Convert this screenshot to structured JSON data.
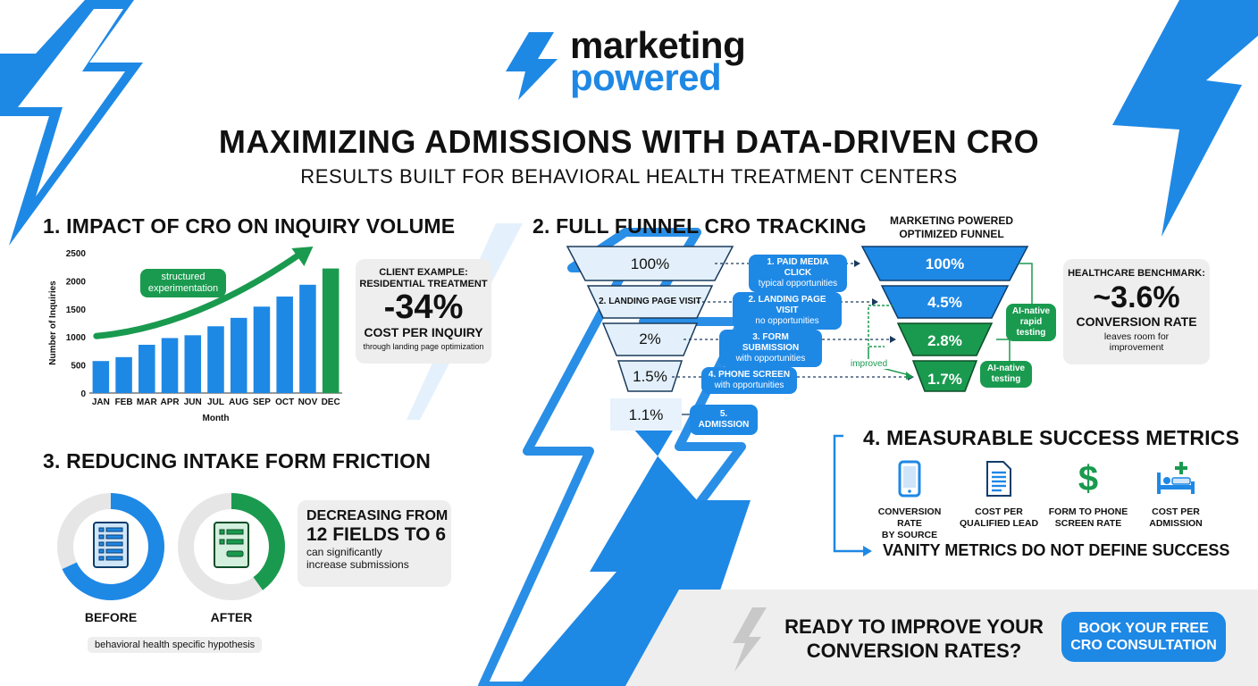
{
  "brand": {
    "line1": "marketing",
    "line2": "powered"
  },
  "title": "MAXIMIZING ADMISSIONS WITH DATA-DRIVEN CRO",
  "subtitle": "RESULTS BUILT FOR BEHAVIORAL HEALTH TREATMENT CENTERS",
  "colors": {
    "blue": "#1e88e5",
    "green": "#1a9a4f",
    "gray": "#eeeeee"
  },
  "section1": {
    "title": "1. IMPACT OF CRO ON INQUIRY VOLUME",
    "annotation": [
      "structured",
      "experimentation"
    ],
    "client": {
      "label1": "CLIENT EXAMPLE:",
      "label2": "RESIDENTIAL TREATMENT",
      "value": "-34%",
      "metric": "COST PER INQUIRY",
      "note": "through landing page optimization"
    }
  },
  "chart_data": {
    "type": "bar",
    "categories": [
      "JAN",
      "FEB",
      "MAR",
      "APR",
      "JUN",
      "JUL",
      "AUG",
      "SEP",
      "OCT",
      "NOV",
      "DEC"
    ],
    "values": [
      570,
      640,
      860,
      980,
      1030,
      1190,
      1340,
      1540,
      1720,
      1930,
      2220
    ],
    "highlight_index": 10,
    "xlabel": "Month",
    "ylabel": "Number of Inquiries",
    "ylim": [
      0,
      2500
    ],
    "yticks": [
      0,
      500,
      1000,
      1500,
      2000,
      2500
    ],
    "grid": false,
    "colors": {
      "bar": "#1e88e5",
      "highlight": "#1a9a4f"
    }
  },
  "section2": {
    "title": "2. FULL FUNNEL CRO TRACKING",
    "optimized_title": [
      "MARKETING POWERED",
      "OPTIMIZED FUNNEL"
    ],
    "typical_stages": [
      "100%",
      "2. LANDING PAGE VISIT",
      "2%",
      "1.5%",
      "1.1%"
    ],
    "steps": [
      {
        "label": "1. PAID MEDIA CLICK",
        "sub": "typical opportunities"
      },
      {
        "label": "2. LANDING PAGE VISIT",
        "sub": "no opportunities"
      },
      {
        "label": "3. FORM SUBMISSION",
        "sub": "with opportunities"
      },
      {
        "label": "4. PHONE SCREEN",
        "sub": "with opportunities"
      },
      {
        "label": "5. ADMISSION",
        "sub": ""
      }
    ],
    "optimized_stages": [
      "100%",
      "4.5%",
      "2.8%",
      "1.7%"
    ],
    "improved": "improved",
    "ai_rapid": [
      "AI-native",
      "rapid",
      "testing"
    ],
    "ai_testing": [
      "AI-native",
      "testing"
    ],
    "benchmark": {
      "label": "HEALTHCARE BENCHMARK:",
      "value": "~3.6%",
      "metric": "CONVERSION RATE",
      "note1": "leaves room for",
      "note2": "improvement"
    }
  },
  "section3": {
    "title": "3. REDUCING INTAKE FORM FRICTION",
    "before": "BEFORE",
    "after": "AFTER",
    "before_progress": 0.68,
    "after_progress": 0.4,
    "headline1": "DECREASING FROM",
    "headline2": "12 FIELDS TO 6",
    "note1": "can significantly",
    "note2": "increase submissions",
    "hypothesis": "behavioral health specific hypothesis"
  },
  "section4": {
    "title": "4. MEASURABLE SUCCESS METRICS",
    "metrics": [
      {
        "icon": "phone-icon",
        "line1": "CONVERSION RATE",
        "line2": "BY SOURCE"
      },
      {
        "icon": "document-icon",
        "line1": "COST PER",
        "line2": "QUALIFIED LEAD"
      },
      {
        "icon": "dollar-icon",
        "line1": "FORM TO PHONE",
        "line2": "SCREEN RATE"
      },
      {
        "icon": "hospital-bed-icon",
        "line1": "COST PER",
        "line2": "ADMISSION"
      }
    ],
    "vanity": "VANITY METRICS DO NOT DEFINE SUCCESS"
  },
  "cta": {
    "line1": "READY TO IMPROVE YOUR",
    "line2": "CONVERSION RATES?",
    "button1": "BOOK YOUR FREE",
    "button2": "CRO CONSULTATION"
  }
}
